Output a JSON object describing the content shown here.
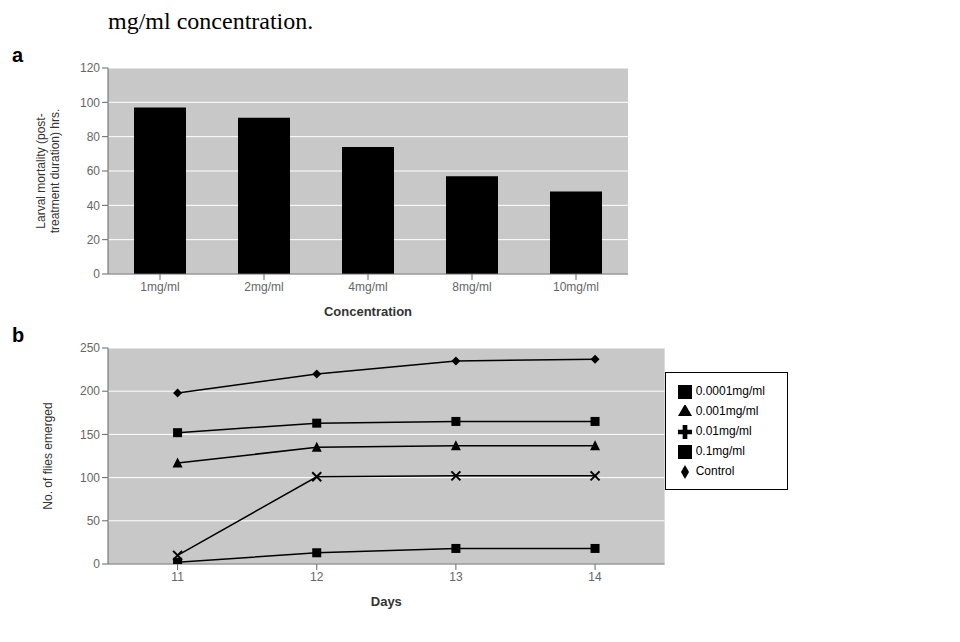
{
  "chart_data": [
    {
      "type": "bar",
      "title": "mg/ml concentration.",
      "annotations": [
        "a"
      ],
      "categories": [
        "1mg/ml",
        "2mg/ml",
        "4mg/ml",
        "8mg/ml",
        "10mg/ml"
      ],
      "values": [
        97,
        91,
        74,
        57,
        48
      ],
      "color": "#000000",
      "xlabel": "Concentration",
      "ylabel": "Larval mortality (post-\ntreatment duration) hrs.",
      "ylim": [
        0,
        120
      ],
      "yticks": [
        0,
        20,
        40,
        60,
        80,
        100,
        120
      ],
      "grid": true
    },
    {
      "type": "line",
      "annotations": [
        "b"
      ],
      "x": [
        11,
        12,
        13,
        14
      ],
      "xlim": [
        10.5,
        14.5
      ],
      "xticks": [
        11,
        12,
        13,
        14
      ],
      "ylim": [
        0,
        250
      ],
      "yticks": [
        0,
        50,
        100,
        150,
        200,
        250
      ],
      "xlabel": "Days",
      "ylabel": "No. of flies emerged",
      "grid": true,
      "legend": "right",
      "series": [
        {
          "name": "Control",
          "color": "#000000",
          "marker": "diamond",
          "values": [
            198,
            220,
            235,
            237
          ]
        },
        {
          "name": "0.0001mg/ml",
          "color": "#000000",
          "marker": "square",
          "values": [
            152,
            163,
            165,
            165
          ]
        },
        {
          "name": "0.001mg/ml",
          "color": "#000000",
          "marker": "triangle",
          "values": [
            117,
            135,
            137,
            137
          ]
        },
        {
          "name": "0.01mg/ml",
          "color": "#000000",
          "marker": "x",
          "values": [
            10,
            101,
            102,
            102
          ]
        },
        {
          "name": "0.1mg/ml",
          "color": "#000000",
          "marker": "square",
          "values": [
            2,
            13,
            18,
            18
          ]
        }
      ]
    }
  ]
}
